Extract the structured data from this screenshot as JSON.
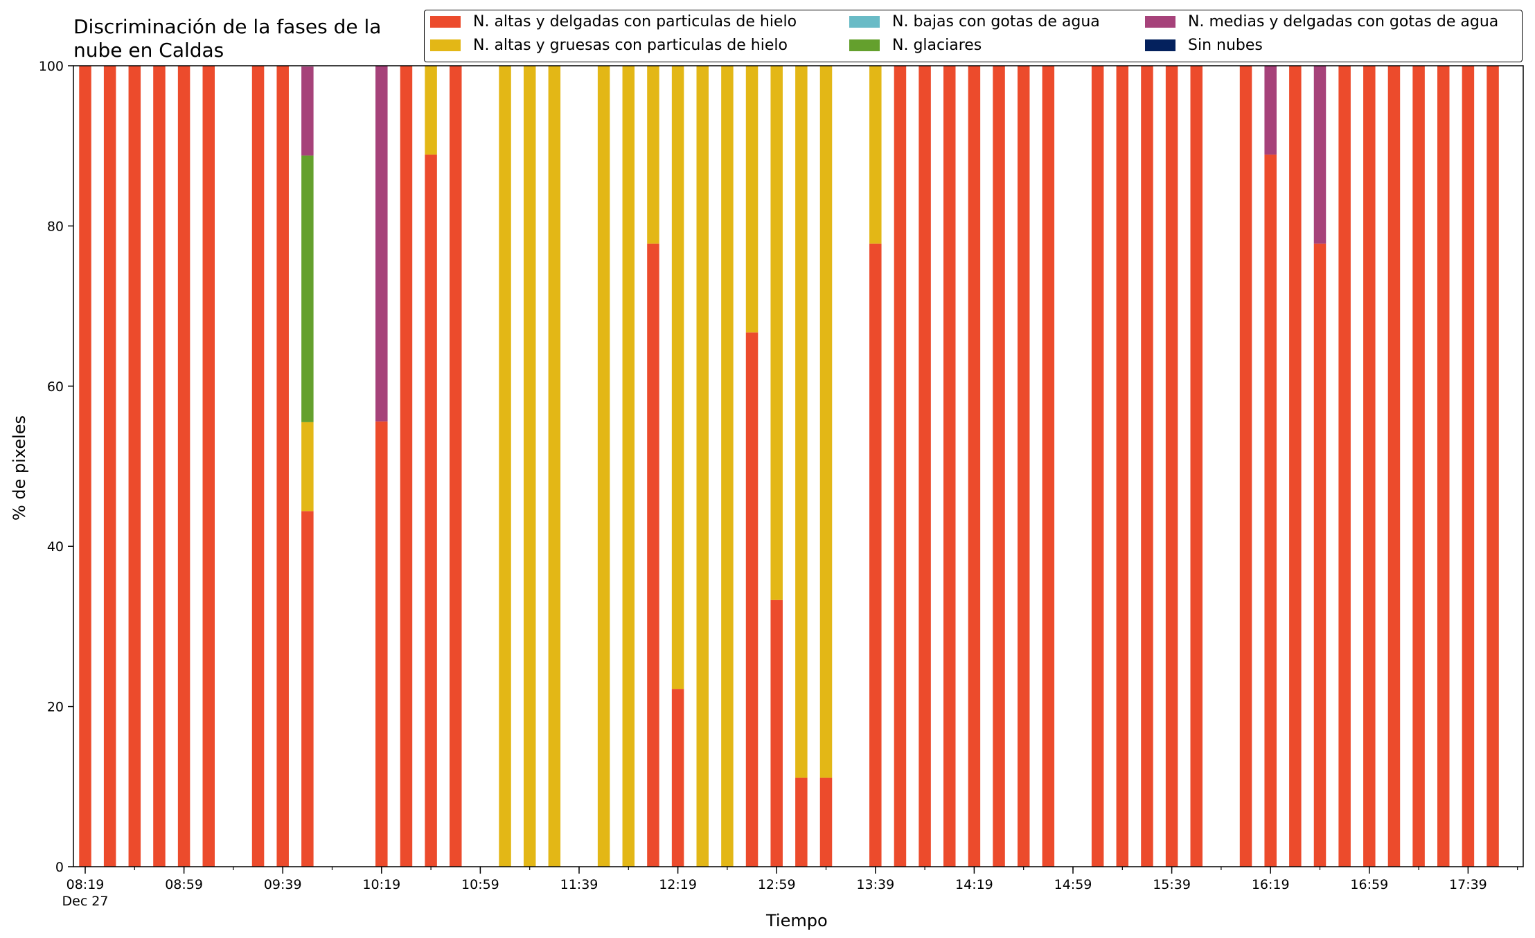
{
  "chart_data": {
    "type": "bar",
    "stacked": true,
    "title": "Discriminación de la fases de la nube en Caldas",
    "xlabel": "Tiempo",
    "ylabel": "% de pixeles",
    "ylim": [
      0,
      100
    ],
    "yticks": [
      "0",
      "20",
      "40",
      "60",
      "80",
      "100"
    ],
    "xticks": [
      "08:19",
      "08:59",
      "09:39",
      "10:19",
      "10:59",
      "11:39",
      "12:19",
      "12:59",
      "13:39",
      "14:19",
      "14:59",
      "15:39",
      "16:19",
      "16:59",
      "17:39"
    ],
    "xtick_sublabel": "Dec 27",
    "legend_position": "top-right",
    "grid": false,
    "colors": {
      "hielo_delgadas": "#ec4b2c",
      "hielo_gruesas": "#e3b716",
      "bajas_agua": "#69bbc6",
      "glaciares": "#64a02d",
      "medias_agua": "#a6427a",
      "sin_nubes": "#04215d"
    },
    "legend": [
      {
        "key": "hielo_delgadas",
        "label": "N. altas y delgadas con particulas de hielo"
      },
      {
        "key": "hielo_gruesas",
        "label": "N. altas y gruesas con particulas de hielo"
      },
      {
        "key": "bajas_agua",
        "label": "N. bajas con gotas de agua"
      },
      {
        "key": "glaciares",
        "label": "N. glaciares"
      },
      {
        "key": "medias_agua",
        "label": "N. medias y delgadas con gotas de agua"
      },
      {
        "key": "sin_nubes",
        "label": "Sin nubes"
      }
    ],
    "series_order": [
      "hielo_delgadas",
      "hielo_gruesas",
      "bajas_agua",
      "glaciares",
      "medias_agua",
      "sin_nubes"
    ],
    "bars": [
      {
        "time": "08:19",
        "hielo_delgadas": 100
      },
      {
        "time": "08:29",
        "hielo_delgadas": 100
      },
      {
        "time": "08:39",
        "hielo_delgadas": 100
      },
      {
        "time": "08:49",
        "hielo_delgadas": 100
      },
      {
        "time": "08:59",
        "hielo_delgadas": 100
      },
      {
        "time": "09:09",
        "hielo_delgadas": 100
      },
      {
        "time": "09:29",
        "hielo_delgadas": 100
      },
      {
        "time": "09:39",
        "hielo_delgadas": 100
      },
      {
        "time": "09:49",
        "hielo_delgadas": 44.4,
        "hielo_gruesas": 11.1,
        "glaciares": 33.3,
        "medias_agua": 11.1
      },
      {
        "time": "10:19",
        "hielo_delgadas": 55.6,
        "medias_agua": 44.4
      },
      {
        "time": "10:29",
        "hielo_delgadas": 100
      },
      {
        "time": "10:39",
        "hielo_delgadas": 88.9,
        "hielo_gruesas": 11.1
      },
      {
        "time": "10:49",
        "hielo_delgadas": 100
      },
      {
        "time": "11:09",
        "hielo_gruesas": 100
      },
      {
        "time": "11:19",
        "hielo_gruesas": 100
      },
      {
        "time": "11:29",
        "hielo_gruesas": 100
      },
      {
        "time": "11:49",
        "hielo_gruesas": 100
      },
      {
        "time": "11:59",
        "hielo_gruesas": 100
      },
      {
        "time": "12:09",
        "hielo_delgadas": 77.8,
        "hielo_gruesas": 22.2
      },
      {
        "time": "12:19",
        "hielo_delgadas": 22.2,
        "hielo_gruesas": 77.8
      },
      {
        "time": "12:29",
        "hielo_gruesas": 100
      },
      {
        "time": "12:39",
        "hielo_gruesas": 100
      },
      {
        "time": "12:49",
        "hielo_delgadas": 66.7,
        "hielo_gruesas": 33.3
      },
      {
        "time": "12:59",
        "hielo_delgadas": 33.3,
        "hielo_gruesas": 66.7
      },
      {
        "time": "13:09",
        "hielo_delgadas": 11.1,
        "hielo_gruesas": 88.9
      },
      {
        "time": "13:19",
        "hielo_delgadas": 11.1,
        "hielo_gruesas": 88.9
      },
      {
        "time": "13:39",
        "hielo_delgadas": 77.8,
        "hielo_gruesas": 22.2
      },
      {
        "time": "13:49",
        "hielo_delgadas": 100
      },
      {
        "time": "13:59",
        "hielo_delgadas": 100
      },
      {
        "time": "14:09",
        "hielo_delgadas": 100
      },
      {
        "time": "14:19",
        "hielo_delgadas": 100
      },
      {
        "time": "14:29",
        "hielo_delgadas": 100
      },
      {
        "time": "14:39",
        "hielo_delgadas": 100
      },
      {
        "time": "14:49",
        "hielo_delgadas": 100
      },
      {
        "time": "15:09",
        "hielo_delgadas": 100
      },
      {
        "time": "15:19",
        "hielo_delgadas": 100
      },
      {
        "time": "15:29",
        "hielo_delgadas": 100
      },
      {
        "time": "15:39",
        "hielo_delgadas": 100
      },
      {
        "time": "15:49",
        "hielo_delgadas": 100
      },
      {
        "time": "16:09",
        "hielo_delgadas": 100
      },
      {
        "time": "16:19",
        "hielo_delgadas": 88.9,
        "medias_agua": 11.1
      },
      {
        "time": "16:29",
        "hielo_delgadas": 100
      },
      {
        "time": "16:39",
        "hielo_delgadas": 77.8,
        "medias_agua": 22.2
      },
      {
        "time": "16:49",
        "hielo_delgadas": 100
      },
      {
        "time": "16:59",
        "hielo_delgadas": 100
      },
      {
        "time": "17:09",
        "hielo_delgadas": 100
      },
      {
        "time": "17:19",
        "hielo_delgadas": 100
      },
      {
        "time": "17:29",
        "hielo_delgadas": 100
      },
      {
        "time": "17:39",
        "hielo_delgadas": 100
      },
      {
        "time": "17:49",
        "hielo_delgadas": 100
      }
    ]
  }
}
